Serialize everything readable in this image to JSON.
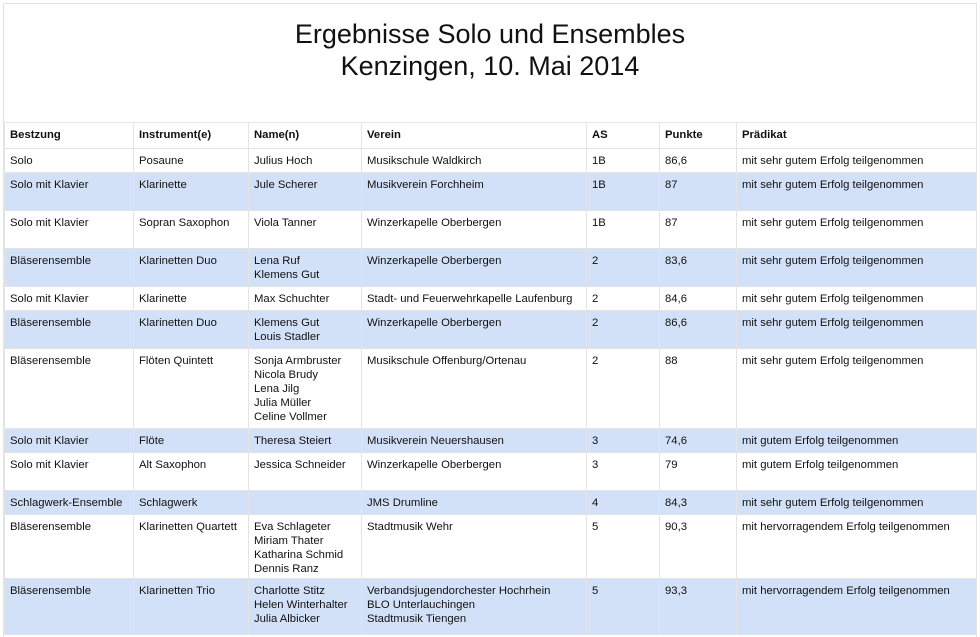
{
  "title": {
    "line1": "Ergebnisse Solo und Ensembles",
    "line2": "Kenzingen, 10. Mai 2014"
  },
  "columns": [
    "Bestzung",
    "Instrument(e)",
    "Name(n)",
    "Verein",
    "AS",
    "Punkte",
    "Prädikat"
  ],
  "rows": [
    {
      "besetzung": "Solo",
      "instrument": "Posaune",
      "names": [
        "Julius Hoch"
      ],
      "verein": [
        "Musikschule Waldkirch"
      ],
      "as": "1B",
      "punkte": "86,6",
      "praedikat": "mit sehr gutem Erfolg teilgenommen"
    },
    {
      "besetzung": "Solo mit Klavier",
      "instrument": "Klarinette",
      "names": [
        "Jule Scherer"
      ],
      "verein": [
        "Musikverein Forchheim"
      ],
      "as": "1B",
      "punkte": "87",
      "praedikat": "mit sehr gutem Erfolg teilgenommen"
    },
    {
      "besetzung": "Solo mit Klavier",
      "instrument": "Sopran Saxophon",
      "names": [
        "Viola Tanner"
      ],
      "verein": [
        "Winzerkapelle Oberbergen"
      ],
      "as": "1B",
      "punkte": "87",
      "praedikat": "mit sehr gutem Erfolg teilgenommen"
    },
    {
      "besetzung": "Bläserensemble",
      "instrument": "Klarinetten Duo",
      "names": [
        "Lena Ruf",
        "Klemens Gut"
      ],
      "verein": [
        "Winzerkapelle Oberbergen"
      ],
      "as": "2",
      "punkte": "83,6",
      "praedikat": "mit sehr gutem Erfolg teilgenommen"
    },
    {
      "besetzung": "Solo mit Klavier",
      "instrument": "Klarinette",
      "names": [
        "Max Schuchter"
      ],
      "verein": [
        "Stadt- und Feuerwehrkapelle Laufenburg"
      ],
      "as": "2",
      "punkte": "84,6",
      "praedikat": "mit sehr gutem Erfolg teilgenommen"
    },
    {
      "besetzung": "Bläserensemble",
      "instrument": "Klarinetten Duo",
      "names": [
        "Klemens Gut",
        "Louis Stadler"
      ],
      "verein": [
        "Winzerkapelle Oberbergen"
      ],
      "as": "2",
      "punkte": "86,6",
      "praedikat": "mit sehr gutem Erfolg teilgenommen"
    },
    {
      "besetzung": "Bläserensemble",
      "instrument": "Flöten Quintett",
      "names": [
        "Sonja Armbruster",
        "Nicola Brudy",
        "Lena Jilg",
        "Julia Müller",
        "Celine Vollmer"
      ],
      "verein": [
        "Musikschule Offenburg/Ortenau"
      ],
      "as": "2",
      "punkte": "88",
      "praedikat": "mit sehr gutem Erfolg teilgenommen"
    },
    {
      "besetzung": "Solo mit Klavier",
      "instrument": "Flöte",
      "names": [
        "Theresa Steiert"
      ],
      "verein": [
        "Musikverein Neuershausen"
      ],
      "as": "3",
      "punkte": "74,6",
      "praedikat": "mit gutem Erfolg teilgenommen"
    },
    {
      "besetzung": "Solo mit Klavier",
      "instrument": "Alt Saxophon",
      "names": [
        "Jessica Schneider"
      ],
      "verein": [
        "Winzerkapelle Oberbergen"
      ],
      "as": "3",
      "punkte": "79",
      "praedikat": "mit gutem Erfolg teilgenommen"
    },
    {
      "besetzung": "Schlagwerk-Ensemble",
      "instrument": "Schlagwerk",
      "names": [],
      "verein": [
        "JMS Drumline"
      ],
      "as": "4",
      "punkte": "84,3",
      "praedikat": "mit sehr gutem Erfolg teilgenommen"
    },
    {
      "besetzung": "Bläserensemble",
      "instrument": "Klarinetten Quartett",
      "names": [
        "Eva Schlageter",
        "Miriam Thater",
        "Katharina Schmid",
        "Dennis Ranz"
      ],
      "verein": [
        "Stadtmusik Wehr"
      ],
      "as": "5",
      "punkte": "90,3",
      "praedikat": "mit hervorragendem Erfolg teilgenommen"
    },
    {
      "besetzung": "Bläserensemble",
      "instrument": "Klarinetten Trio",
      "names": [
        "Charlotte Stitz",
        "Helen Winterhalter",
        "Julia Albicker"
      ],
      "verein": [
        "Verbandsjugendorchester Hochrhein",
        "BLO Unterlauchingen",
        "Stadtmusik Tiengen"
      ],
      "as": "5",
      "punkte": "93,3",
      "praedikat": "mit hervorragendem Erfolg teilgenommen"
    }
  ]
}
